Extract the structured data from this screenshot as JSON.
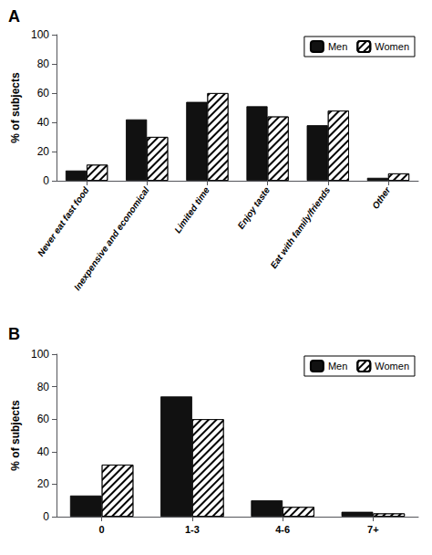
{
  "chart_data": [
    {
      "type": "bar",
      "title": "A",
      "categories": [
        "Never eat fast food",
        "Inexpensive and economical",
        "Limited time",
        "Enjoy taste",
        "Eat with family/friends",
        "Other"
      ],
      "series": [
        {
          "name": "Men",
          "color": "#111111",
          "values": [
            7,
            42,
            54,
            51,
            38,
            2
          ]
        },
        {
          "name": "Women",
          "color": "#ffffff",
          "values": [
            11,
            30,
            60,
            44,
            48,
            5
          ]
        }
      ],
      "ylabel": "% of subjects",
      "ylim": [
        0,
        100
      ],
      "yticks": [
        0,
        20,
        40,
        60,
        80,
        100
      ],
      "grid": false,
      "legend": "upper right"
    },
    {
      "type": "bar",
      "title": "B",
      "categories": [
        "0",
        "1-3",
        "4-6",
        "7+"
      ],
      "series": [
        {
          "name": "Men",
          "color": "#111111",
          "values": [
            13,
            74,
            10,
            3
          ]
        },
        {
          "name": "Women",
          "color": "#ffffff",
          "values": [
            32,
            60,
            6,
            2
          ]
        }
      ],
      "ylabel": "% of subjects",
      "ylim": [
        0,
        100
      ],
      "yticks": [
        0,
        20,
        40,
        60,
        80,
        100
      ],
      "grid": false,
      "legend": "upper right"
    }
  ]
}
